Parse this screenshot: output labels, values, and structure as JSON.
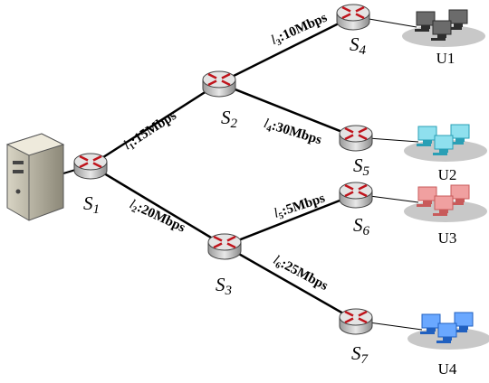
{
  "nodes": [
    {
      "letter": "S",
      "index": "1"
    },
    {
      "letter": "S",
      "index": "2"
    },
    {
      "letter": "S",
      "index": "3"
    },
    {
      "letter": "S",
      "index": "4"
    },
    {
      "letter": "S",
      "index": "5"
    },
    {
      "letter": "S",
      "index": "6"
    },
    {
      "letter": "S",
      "index": "7"
    }
  ],
  "links": [
    {
      "letter": "l",
      "index": "1",
      "rate": ":15Mbps"
    },
    {
      "letter": "l",
      "index": "2",
      "rate": ":20Mbps"
    },
    {
      "letter": "l",
      "index": "3",
      "rate": ":10Mbps"
    },
    {
      "letter": "l",
      "index": "4",
      "rate": ":30Mbps"
    },
    {
      "letter": "l",
      "index": "5",
      "rate": ":5Mbps"
    },
    {
      "letter": "l",
      "index": "6",
      "rate": ":25Mbps"
    }
  ],
  "users": [
    "U1",
    "U2",
    "U3",
    "U4"
  ]
}
